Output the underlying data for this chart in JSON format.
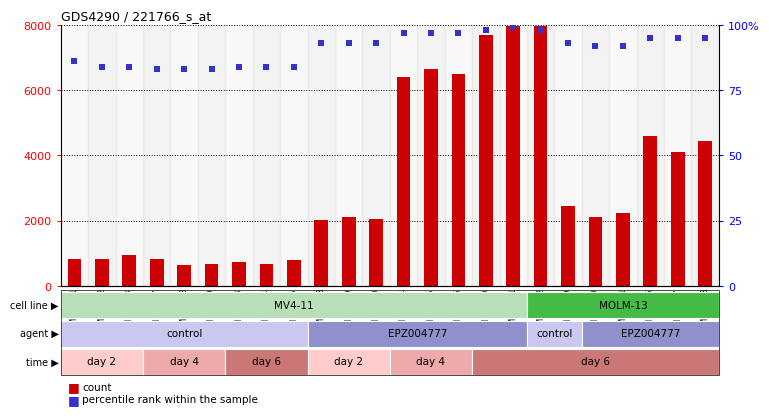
{
  "title": "GDS4290 / 221766_s_at",
  "samples": [
    "GSM739151",
    "GSM739152",
    "GSM739153",
    "GSM739157",
    "GSM739158",
    "GSM739159",
    "GSM739163",
    "GSM739164",
    "GSM739165",
    "GSM739148",
    "GSM739149",
    "GSM739150",
    "GSM739154",
    "GSM739155",
    "GSM739156",
    "GSM739160",
    "GSM739161",
    "GSM739162",
    "GSM739169",
    "GSM739170",
    "GSM739171",
    "GSM739166",
    "GSM739167",
    "GSM739168"
  ],
  "counts": [
    820,
    820,
    950,
    820,
    650,
    680,
    750,
    680,
    800,
    2020,
    2100,
    2050,
    6400,
    6650,
    6500,
    7700,
    7950,
    7950,
    2450,
    2100,
    2250,
    4600,
    4100,
    4450
  ],
  "percentiles": [
    86,
    84,
    84,
    83,
    83,
    83,
    84,
    84,
    84,
    93,
    93,
    93,
    97,
    97,
    97,
    98,
    99,
    98,
    93,
    92,
    92,
    95,
    95,
    95
  ],
  "bar_color": "#cc0000",
  "dot_color": "#3333cc",
  "ylim_left": [
    0,
    8000
  ],
  "ylim_right": [
    0,
    100
  ],
  "yticks_left": [
    0,
    2000,
    4000,
    6000,
    8000
  ],
  "yticks_right": [
    0,
    25,
    50,
    75,
    100
  ],
  "cell_line_groups": [
    {
      "label": "MV4-11",
      "start": 0,
      "end": 17,
      "color": "#b8e0b8"
    },
    {
      "label": "MOLM-13",
      "start": 17,
      "end": 24,
      "color": "#44bb44"
    }
  ],
  "agent_groups": [
    {
      "label": "control",
      "start": 0,
      "end": 9,
      "color": "#c8c8f0"
    },
    {
      "label": "EPZ004777",
      "start": 9,
      "end": 17,
      "color": "#9090cc"
    },
    {
      "label": "control",
      "start": 17,
      "end": 19,
      "color": "#c8c8f0"
    },
    {
      "label": "EPZ004777",
      "start": 19,
      "end": 24,
      "color": "#9090cc"
    }
  ],
  "time_groups": [
    {
      "label": "day 2",
      "start": 0,
      "end": 3,
      "color": "#ffcccc"
    },
    {
      "label": "day 4",
      "start": 3,
      "end": 6,
      "color": "#eeaaaa"
    },
    {
      "label": "day 6",
      "start": 6,
      "end": 9,
      "color": "#cc7777"
    },
    {
      "label": "day 2",
      "start": 9,
      "end": 12,
      "color": "#ffcccc"
    },
    {
      "label": "day 4",
      "start": 12,
      "end": 15,
      "color": "#eeaaaa"
    },
    {
      "label": "day 6",
      "start": 15,
      "end": 24,
      "color": "#cc7777"
    }
  ],
  "label_cell_line": "cell line",
  "label_agent": "agent",
  "label_time": "time",
  "legend_count": "count",
  "legend_percentile": "percentile rank within the sample"
}
